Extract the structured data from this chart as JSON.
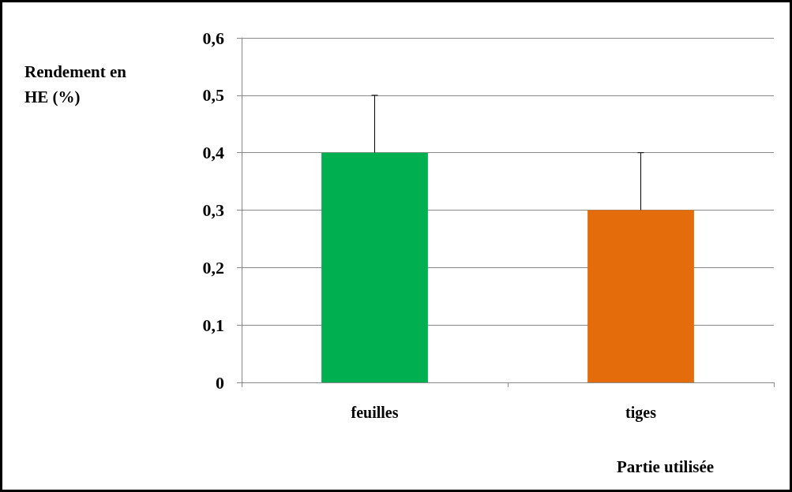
{
  "chart_data": {
    "type": "bar",
    "categories": [
      "feuilles",
      "tiges"
    ],
    "values": [
      0.4,
      0.3
    ],
    "colors": [
      "#00b050",
      "#e46c0a"
    ],
    "errors": [
      [
        0.4,
        0.5
      ],
      [
        0.3,
        0.4
      ]
    ],
    "ylabel": "Rendement en HE (%)",
    "xlabel": "Partie utilisée",
    "ylim": [
      0,
      0.6
    ],
    "yticks": [
      {
        "value": 0,
        "label": "0"
      },
      {
        "value": 0.1,
        "label": "0,1"
      },
      {
        "value": 0.2,
        "label": "0,2"
      },
      {
        "value": 0.3,
        "label": "0,3"
      },
      {
        "value": 0.4,
        "label": "0,4"
      },
      {
        "value": 0.5,
        "label": "0,5"
      },
      {
        "value": 0.6,
        "label": "0,6"
      }
    ],
    "grid": "y"
  }
}
